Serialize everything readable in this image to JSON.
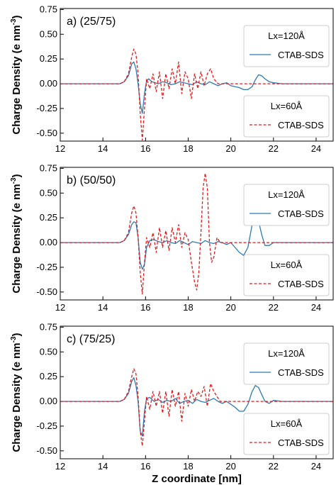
{
  "chart_data": [
    {
      "type": "line",
      "panel_label": "a) (25/75)",
      "ylabel": "Charge Density (e nm",
      "ylabel_sup": "-3",
      "ylabel_end": ")",
      "xlim": [
        12,
        24.8
      ],
      "ylim": [
        -0.58,
        0.76
      ],
      "xticks": [
        "12",
        "14",
        "16",
        "18",
        "20",
        "22",
        "24"
      ],
      "yticks": [
        "0.75",
        "0.50",
        "0.25",
        "0.00",
        "-0.25",
        "-0.50"
      ],
      "legend_top": {
        "title": "Lx=120Å",
        "entry": "CTAB-SDS",
        "placement": "upper right"
      },
      "legend_bottom": {
        "title": "Lx=60Å",
        "entry": "CTAB-SDS",
        "placement": "lower right"
      },
      "series": [
        {
          "label": "Lx=120Å CTAB-SDS",
          "color": "#2c7bb6",
          "style": "solid",
          "x": [
            12,
            14.8,
            15.0,
            15.2,
            15.35,
            15.45,
            15.55,
            15.65,
            15.75,
            15.85,
            15.95,
            16.05,
            16.15,
            16.3,
            16.45,
            16.6,
            16.8,
            17.0,
            17.2,
            17.4,
            17.6,
            17.8,
            18.0,
            18.2,
            18.4,
            18.6,
            18.8,
            19.0,
            19.2,
            19.4,
            19.6,
            19.8,
            20.0,
            20.2,
            20.4,
            20.6,
            20.8,
            21.0,
            21.15,
            21.3,
            21.45,
            21.6,
            21.8,
            22.0,
            22.4,
            24.8
          ],
          "y": [
            0,
            0.0,
            0.02,
            0.08,
            0.2,
            0.22,
            0.15,
            0.0,
            -0.2,
            -0.3,
            -0.1,
            0.03,
            0.05,
            0.02,
            0.01,
            0.0,
            0.02,
            0.01,
            -0.01,
            0.0,
            0.02,
            0.01,
            0.0,
            -0.01,
            0.02,
            0.0,
            -0.01,
            0.02,
            0.0,
            -0.02,
            0.0,
            0.01,
            -0.02,
            -0.03,
            -0.04,
            -0.06,
            -0.06,
            -0.03,
            0.04,
            0.09,
            0.08,
            0.05,
            0.02,
            0.01,
            0.0,
            0.0
          ]
        },
        {
          "label": "Lx=60Å CTAB-SDS",
          "color": "#e31a1c",
          "style": "dashed",
          "x": [
            12,
            14.8,
            15.0,
            15.2,
            15.35,
            15.45,
            15.55,
            15.65,
            15.75,
            15.85,
            15.95,
            16.05,
            16.2,
            16.35,
            16.5,
            16.65,
            16.8,
            16.95,
            17.1,
            17.25,
            17.4,
            17.55,
            17.7,
            17.85,
            18.0,
            18.15,
            18.3,
            18.45,
            18.6,
            18.75,
            18.9,
            19.05,
            19.2,
            19.4,
            19.6,
            24.8
          ],
          "y": [
            0,
            0.0,
            0.02,
            0.1,
            0.27,
            0.35,
            0.3,
            0.1,
            -0.3,
            -0.57,
            -0.25,
            0.05,
            -0.05,
            0.1,
            -0.08,
            0.12,
            -0.15,
            0.1,
            -0.05,
            0.15,
            0.0,
            0.22,
            -0.1,
            0.12,
            0.05,
            -0.15,
            0.1,
            -0.05,
            0.12,
            -0.02,
            0.1,
            0.15,
            0.05,
            0.0,
            0.0,
            0.0
          ]
        }
      ]
    },
    {
      "type": "line",
      "panel_label": "b) (50/50)",
      "ylabel": "Charge Density (e nm",
      "ylabel_sup": "-3",
      "ylabel_end": ")",
      "xlim": [
        12,
        24.8
      ],
      "ylim": [
        -0.58,
        0.76
      ],
      "xticks": [
        "12",
        "14",
        "16",
        "18",
        "20",
        "22",
        "24"
      ],
      "yticks": [
        "0.75",
        "0.50",
        "0.25",
        "0.00",
        "-0.25",
        "-0.50"
      ],
      "legend_top": {
        "title": "Lx=120Å",
        "entry": "CTAB-SDS",
        "placement": "upper right"
      },
      "legend_bottom": {
        "title": "Lx=60Å",
        "entry": "CTAB-SDS",
        "placement": "lower right"
      },
      "series": [
        {
          "label": "Lx=120Å CTAB-SDS",
          "color": "#2c7bb6",
          "style": "solid",
          "x": [
            12,
            14.8,
            15.0,
            15.2,
            15.35,
            15.45,
            15.55,
            15.65,
            15.75,
            15.85,
            15.95,
            16.05,
            16.2,
            16.4,
            16.6,
            16.8,
            17.0,
            17.2,
            17.4,
            17.6,
            17.8,
            18.0,
            18.2,
            18.4,
            18.6,
            18.8,
            19.0,
            19.2,
            19.4,
            19.6,
            19.8,
            20.0,
            20.2,
            20.4,
            20.6,
            20.8,
            21.0,
            21.15,
            21.3,
            21.45,
            21.6,
            21.8,
            22.0,
            22.4,
            24.8
          ],
          "y": [
            0,
            0.0,
            0.02,
            0.08,
            0.18,
            0.21,
            0.2,
            0.05,
            -0.2,
            -0.27,
            -0.22,
            -0.05,
            0.02,
            0.03,
            0.01,
            0.0,
            0.02,
            0.0,
            -0.01,
            0.02,
            0.0,
            -0.02,
            0.01,
            0.0,
            -0.01,
            0.02,
            0.0,
            -0.01,
            0.01,
            0.0,
            -0.02,
            0.0,
            -0.05,
            -0.1,
            -0.13,
            -0.05,
            0.18,
            0.24,
            0.22,
            0.08,
            -0.03,
            -0.03,
            0.0,
            0.0,
            0.0
          ]
        },
        {
          "label": "Lx=60Å CTAB-SDS",
          "color": "#e31a1c",
          "style": "dashed",
          "x": [
            12,
            14.8,
            15.0,
            15.2,
            15.35,
            15.45,
            15.55,
            15.65,
            15.75,
            15.85,
            15.95,
            16.05,
            16.2,
            16.35,
            16.5,
            16.65,
            16.8,
            16.95,
            17.1,
            17.25,
            17.4,
            17.55,
            17.7,
            17.85,
            18.0,
            18.15,
            18.3,
            18.4,
            18.5,
            18.6,
            18.7,
            18.8,
            18.9,
            19.0,
            19.1,
            19.2,
            19.35,
            19.5,
            19.7,
            24.8
          ],
          "y": [
            0,
            0.0,
            0.02,
            0.1,
            0.3,
            0.37,
            0.3,
            0.05,
            -0.3,
            -0.52,
            -0.2,
            0.05,
            -0.05,
            0.1,
            -0.1,
            0.15,
            -0.05,
            0.12,
            -0.08,
            0.15,
            0.0,
            0.18,
            -0.05,
            0.1,
            0.03,
            -0.2,
            -0.4,
            -0.48,
            -0.3,
            0.1,
            0.55,
            0.7,
            0.55,
            0.0,
            -0.2,
            -0.15,
            0.05,
            0.0,
            0.0,
            0.0
          ]
        }
      ]
    },
    {
      "type": "line",
      "panel_label": "c) (75/25)",
      "ylabel": "Charge Density (e nm",
      "ylabel_sup": "-3",
      "ylabel_end": ")",
      "xlabel": "Z  coordinate [nm]",
      "xlim": [
        12,
        24.8
      ],
      "ylim": [
        -0.58,
        0.76
      ],
      "xticks": [
        "12",
        "14",
        "16",
        "18",
        "20",
        "22",
        "24"
      ],
      "yticks": [
        "0.75",
        "0.50",
        "0.25",
        "0.00",
        "-0.25",
        "-0.50"
      ],
      "legend_top": {
        "title": "Lx=120Å",
        "entry": "CTAB-SDS",
        "placement": "upper right"
      },
      "legend_bottom": {
        "title": "Lx=60Å",
        "entry": "CTAB-SDS",
        "placement": "lower right"
      },
      "series": [
        {
          "label": "Lx=120Å CTAB-SDS",
          "color": "#2c7bb6",
          "style": "solid",
          "x": [
            12,
            14.8,
            15.0,
            15.2,
            15.35,
            15.45,
            15.55,
            15.65,
            15.75,
            15.85,
            15.95,
            16.05,
            16.2,
            16.4,
            16.6,
            16.8,
            17.0,
            17.2,
            17.4,
            17.6,
            17.8,
            18.0,
            18.2,
            18.4,
            18.6,
            18.8,
            19.0,
            19.2,
            19.4,
            19.6,
            19.8,
            20.0,
            20.2,
            20.4,
            20.6,
            20.8,
            21.0,
            21.15,
            21.3,
            21.45,
            21.6,
            21.8,
            22.0,
            22.4,
            24.8
          ],
          "y": [
            0,
            0.0,
            0.02,
            0.08,
            0.2,
            0.24,
            0.16,
            0.0,
            -0.3,
            -0.35,
            -0.1,
            0.03,
            0.04,
            0.0,
            0.02,
            -0.01,
            0.01,
            0.0,
            0.03,
            -0.02,
            0.0,
            0.01,
            -0.02,
            0.02,
            0.0,
            -0.01,
            0.01,
            0.03,
            0.0,
            -0.02,
            0.0,
            -0.03,
            -0.06,
            -0.1,
            -0.1,
            -0.03,
            0.1,
            0.16,
            0.14,
            0.07,
            0.0,
            -0.02,
            0.01,
            0.0,
            0.0
          ]
        },
        {
          "label": "Lx=60Å CTAB-SDS",
          "color": "#e31a1c",
          "style": "dashed",
          "x": [
            12,
            14.8,
            15.0,
            15.2,
            15.35,
            15.45,
            15.55,
            15.65,
            15.75,
            15.85,
            15.95,
            16.05,
            16.2,
            16.35,
            16.5,
            16.65,
            16.8,
            16.95,
            17.1,
            17.25,
            17.4,
            17.55,
            17.7,
            17.85,
            18.0,
            18.15,
            18.3,
            18.45,
            18.6,
            18.75,
            18.9,
            19.05,
            19.2,
            19.35,
            19.5,
            19.7,
            24.8
          ],
          "y": [
            0,
            0.0,
            0.02,
            0.1,
            0.25,
            0.33,
            0.28,
            0.05,
            -0.3,
            -0.45,
            -0.2,
            0.05,
            -0.08,
            0.1,
            -0.05,
            0.1,
            -0.12,
            0.1,
            -0.15,
            0.12,
            -0.05,
            0.1,
            -0.2,
            0.08,
            -0.05,
            0.12,
            0.0,
            0.1,
            0.05,
            0.15,
            -0.05,
            0.18,
            0.1,
            0.05,
            0.0,
            0.0,
            0.0
          ]
        }
      ]
    }
  ]
}
